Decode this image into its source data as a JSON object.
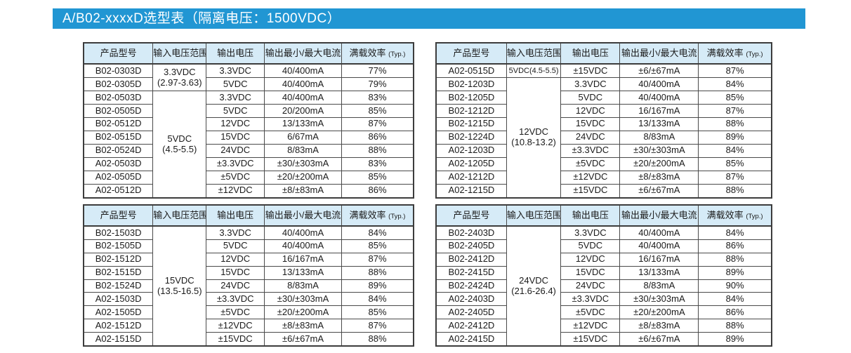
{
  "title_bar": {
    "text": "A/B02-xxxxD选型表（隔离电压：1500VDC）"
  },
  "colors": {
    "banner_bg": "#2196d3",
    "banner_text": "#ffffff",
    "header_bg": "#d6ebf7",
    "border": "#4a4a4a",
    "text": "#1a1a1a"
  },
  "table_headers": {
    "model": "产品型号",
    "input_range": "输入电压范围",
    "output_voltage": "输出电压",
    "output_current": "输出最小/最大电流",
    "efficiency": "满载效率",
    "efficiency_suffix": "(Typ.)"
  },
  "tables": [
    {
      "position": "top-left",
      "input_groups": [
        {
          "start": 0,
          "span": 2,
          "main": "3.3VDC",
          "sub": "(2.97-3.63)"
        },
        {
          "start": 2,
          "span": 8,
          "main": "5VDC",
          "sub": "(4.5-5.5)"
        }
      ],
      "rows": [
        [
          "B02-0303D",
          "3.3VDC",
          "40/400mA",
          "77%"
        ],
        [
          "B02-0305D",
          "5VDC",
          "40/400mA",
          "79%"
        ],
        [
          "B02-0503D",
          "3.3VDC",
          "40/400mA",
          "83%"
        ],
        [
          "B02-0505D",
          "5VDC",
          "20/200mA",
          "85%"
        ],
        [
          "B02-0512D",
          "12VDC",
          "13/133mA",
          "87%"
        ],
        [
          "B02-0515D",
          "15VDC",
          "6/67mA",
          "86%"
        ],
        [
          "B02-0524D",
          "24VDC",
          "8/83mA",
          "88%"
        ],
        [
          "A02-0503D",
          "±3.3VDC",
          "±30/±303mA",
          "83%"
        ],
        [
          "A02-0505D",
          "±5VDC",
          "±20/±200mA",
          "85%"
        ],
        [
          "A02-0512D",
          "±12VDC",
          "±8/±83mA",
          "86%"
        ]
      ]
    },
    {
      "position": "top-right",
      "input_groups": [
        {
          "start": 0,
          "span": 1,
          "main": "5VDC(4.5-5.5)",
          "sub": ""
        },
        {
          "start": 1,
          "span": 9,
          "main": "12VDC",
          "sub": "(10.8-13.2)"
        }
      ],
      "rows": [
        [
          "A02-0515D",
          "±15VDC",
          "±6/±67mA",
          "87%"
        ],
        [
          "B02-1203D",
          "3.3VDC",
          "40/400mA",
          "84%"
        ],
        [
          "B02-1205D",
          "5VDC",
          "40/400mA",
          "85%"
        ],
        [
          "B02-1212D",
          "12VDC",
          "16/167mA",
          "87%"
        ],
        [
          "B02-1215D",
          "15VDC",
          "13/133mA",
          "88%"
        ],
        [
          "B02-1224D",
          "24VDC",
          "8/83mA",
          "89%"
        ],
        [
          "A02-1203D",
          "±3.3VDC",
          "±30/±303mA",
          "84%"
        ],
        [
          "A02-1205D",
          "±5VDC",
          "±20/±200mA",
          "85%"
        ],
        [
          "A02-1212D",
          "±12VDC",
          "±8/±83mA",
          "87%"
        ],
        [
          "A02-1215D",
          "±15VDC",
          "±6/±67mA",
          "88%"
        ]
      ]
    },
    {
      "position": "bottom-left",
      "input_groups": [
        {
          "start": 0,
          "span": 9,
          "main": "15VDC",
          "sub": "(13.5-16.5)"
        }
      ],
      "rows": [
        [
          "B02-1503D",
          "3.3VDC",
          "40/400mA",
          "84%"
        ],
        [
          "B02-1505D",
          "5VDC",
          "40/400mA",
          "85%"
        ],
        [
          "B02-1512D",
          "12VDC",
          "16/167mA",
          "87%"
        ],
        [
          "B02-1515D",
          "15VDC",
          "13/133mA",
          "88%"
        ],
        [
          "B02-1524D",
          "24VDC",
          "8/83mA",
          "89%"
        ],
        [
          "A02-1503D",
          "±3.3VDC",
          "±30/±303mA",
          "84%"
        ],
        [
          "A02-1505D",
          "±5VDC",
          "±20/±200mA",
          "85%"
        ],
        [
          "A02-1512D",
          "±12VDC",
          "±8/±83mA",
          "87%"
        ],
        [
          "A02-1515D",
          "±15VDC",
          "±6/±67mA",
          "88%"
        ]
      ]
    },
    {
      "position": "bottom-right",
      "input_groups": [
        {
          "start": 0,
          "span": 9,
          "main": "24VDC",
          "sub": "(21.6-26.4)"
        }
      ],
      "rows": [
        [
          "B02-2403D",
          "3.3VDC",
          "40/400mA",
          "84%"
        ],
        [
          "B02-2405D",
          "5VDC",
          "40/400mA",
          "86%"
        ],
        [
          "B02-2412D",
          "12VDC",
          "16/167mA",
          "88%"
        ],
        [
          "B02-2415D",
          "15VDC",
          "13/133mA",
          "89%"
        ],
        [
          "B02-2424D",
          "24VDC",
          "8/83mA",
          "90%"
        ],
        [
          "A02-2403D",
          "±3.3VDC",
          "±30/±303mA",
          "84%"
        ],
        [
          "A02-2405D",
          "±5VDC",
          "±20/±200mA",
          "86%"
        ],
        [
          "A02-2412D",
          "±12VDC",
          "±8/±83mA",
          "88%"
        ],
        [
          "A02-2415D",
          "±15VDC",
          "±6/±67mA",
          "89%"
        ]
      ]
    }
  ]
}
